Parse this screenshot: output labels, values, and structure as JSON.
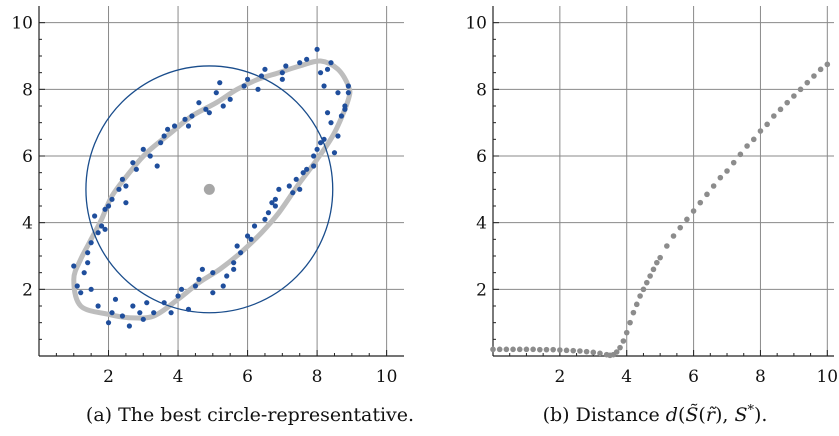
{
  "chart_data": [
    {
      "type": "scatter",
      "caption": "(a) The best circle-representative.",
      "xlim": [
        0,
        10.5
      ],
      "ylim": [
        0,
        10.5
      ],
      "xticks": [
        2,
        4,
        6,
        8,
        10
      ],
      "yticks": [
        2,
        4,
        6,
        8,
        10
      ],
      "grid": true,
      "colors": {
        "points": "#1f4e9c",
        "curve": "#bdbdbd",
        "circle": "#1a4d8c",
        "center": "#a6a6a6"
      },
      "curve_loop": [
        [
          2.0,
          1.25
        ],
        [
          2.6,
          1.15
        ],
        [
          3.3,
          1.2
        ],
        [
          4.0,
          1.7
        ],
        [
          4.6,
          2.2
        ],
        [
          5.2,
          2.6
        ],
        [
          5.8,
          3.1
        ],
        [
          6.4,
          3.7
        ],
        [
          6.9,
          4.3
        ],
        [
          7.5,
          5.2
        ],
        [
          8.0,
          5.9
        ],
        [
          8.5,
          6.7
        ],
        [
          8.9,
          7.7
        ],
        [
          8.9,
          8.1
        ],
        [
          8.6,
          8.6
        ],
        [
          8.1,
          8.85
        ],
        [
          7.5,
          8.7
        ],
        [
          6.9,
          8.5
        ],
        [
          6.3,
          8.3
        ],
        [
          5.7,
          8.0
        ],
        [
          5.1,
          7.6
        ],
        [
          4.4,
          7.2
        ],
        [
          3.8,
          6.7
        ],
        [
          3.1,
          6.1
        ],
        [
          2.6,
          5.5
        ],
        [
          2.1,
          4.8
        ],
        [
          1.8,
          4.1
        ],
        [
          1.5,
          3.5
        ],
        [
          1.2,
          2.9
        ],
        [
          1.0,
          2.3
        ],
        [
          1.2,
          1.5
        ]
      ],
      "circle": {
        "center": [
          4.9,
          5.0
        ],
        "radius": 3.55
      },
      "center_point": [
        4.9,
        5.0
      ],
      "points": [
        [
          2.7,
          1.5
        ],
        [
          1.0,
          2.7
        ],
        [
          4.3,
          1.4
        ],
        [
          8.4,
          7.0
        ],
        [
          5.3,
          2.1
        ],
        [
          7.2,
          5.1
        ],
        [
          2.5,
          4.6
        ],
        [
          5.5,
          7.7
        ],
        [
          3.3,
          1.3
        ],
        [
          1.8,
          3.9
        ],
        [
          1.7,
          1.5
        ],
        [
          8.2,
          8.1
        ],
        [
          6.0,
          8.3
        ],
        [
          5.0,
          2.5
        ],
        [
          6.8,
          4.5
        ],
        [
          8.1,
          6.4
        ],
        [
          7.0,
          8.3
        ],
        [
          3.9,
          6.9
        ],
        [
          1.4,
          3.1
        ],
        [
          8.8,
          7.5
        ],
        [
          3.0,
          6.2
        ],
        [
          4.6,
          2.3
        ],
        [
          2.4,
          1.2
        ],
        [
          2.1,
          4.7
        ],
        [
          5.1,
          7.9
        ],
        [
          7.5,
          8.8
        ],
        [
          8.6,
          7.9
        ],
        [
          1.1,
          2.1
        ],
        [
          7.7,
          5.6
        ],
        [
          3.6,
          1.6
        ],
        [
          4.9,
          7.3
        ],
        [
          2.8,
          5.6
        ],
        [
          1.5,
          3.4
        ],
        [
          6.5,
          4.1
        ],
        [
          8.3,
          8.6
        ],
        [
          5.8,
          3.1
        ],
        [
          2.0,
          1.0
        ],
        [
          7.9,
          6.0
        ],
        [
          3.5,
          6.4
        ],
        [
          4.2,
          7.1
        ],
        [
          6.3,
          8.0
        ],
        [
          8.0,
          9.2
        ],
        [
          1.6,
          4.2
        ],
        [
          4.1,
          2.0
        ],
        [
          8.5,
          6.1
        ],
        [
          2.3,
          5.0
        ],
        [
          7.1,
          8.7
        ],
        [
          6.0,
          3.6
        ],
        [
          4.4,
          7.2
        ],
        [
          7.4,
          5.3
        ],
        [
          1.3,
          2.5
        ],
        [
          5.6,
          2.8
        ],
        [
          2.6,
          0.9
        ],
        [
          8.9,
          8.1
        ],
        [
          3.2,
          6.0
        ],
        [
          6.6,
          4.3
        ],
        [
          5.3,
          7.5
        ],
        [
          8.7,
          7.2
        ],
        [
          1.9,
          4.4
        ],
        [
          2.9,
          1.3
        ],
        [
          4.0,
          1.8
        ],
        [
          7.7,
          8.9
        ],
        [
          6.2,
          3.9
        ],
        [
          3.7,
          6.8
        ],
        [
          8.2,
          6.5
        ],
        [
          1.2,
          1.9
        ],
        [
          5.9,
          8.1
        ],
        [
          4.7,
          2.6
        ],
        [
          2.4,
          5.3
        ],
        [
          6.9,
          5.0
        ],
        [
          8.4,
          8.8
        ],
        [
          3.1,
          1.6
        ],
        [
          7.3,
          4.9
        ],
        [
          4.6,
          7.6
        ],
        [
          1.7,
          3.7
        ],
        [
          5.4,
          2.4
        ],
        [
          8.8,
          7.4
        ],
        [
          2.2,
          1.7
        ],
        [
          6.4,
          8.4
        ],
        [
          3.4,
          5.7
        ],
        [
          7.9,
          5.7
        ],
        [
          6.7,
          4.6
        ],
        [
          1.4,
          2.8
        ],
        [
          5.0,
          1.9
        ],
        [
          2.0,
          4.5
        ],
        [
          8.6,
          6.6
        ],
        [
          4.3,
          6.9
        ],
        [
          3.8,
          1.3
        ],
        [
          7.0,
          8.5
        ],
        [
          5.7,
          3.3
        ],
        [
          8.1,
          8.5
        ],
        [
          2.7,
          5.8
        ],
        [
          6.1,
          3.5
        ],
        [
          1.5,
          2.0
        ],
        [
          4.8,
          7.4
        ],
        [
          7.6,
          5.5
        ],
        [
          3.0,
          1.1
        ],
        [
          8.3,
          7.3
        ],
        [
          5.2,
          8.2
        ],
        [
          6.8,
          4.7
        ],
        [
          2.1,
          1.3
        ],
        [
          4.5,
          2.1
        ],
        [
          3.6,
          6.6
        ],
        [
          8.9,
          7.9
        ],
        [
          1.9,
          3.8
        ],
        [
          6.5,
          8.6
        ],
        [
          5.6,
          2.6
        ],
        [
          7.5,
          5.0
        ],
        [
          2.5,
          5.1
        ],
        [
          8.0,
          6.2
        ]
      ]
    },
    {
      "type": "scatter",
      "caption": "(b) Distance d(S̃(r̃), S*).",
      "xlim": [
        0,
        10.2
      ],
      "ylim": [
        0,
        10.5
      ],
      "xticks": [
        2,
        4,
        6,
        8,
        10
      ],
      "yticks": [
        2,
        4,
        6,
        8,
        10
      ],
      "grid": true,
      "colors": {
        "points": "#8c8c8c"
      },
      "points": [
        [
          0.0,
          0.2
        ],
        [
          0.2,
          0.2
        ],
        [
          0.4,
          0.2
        ],
        [
          0.6,
          0.2
        ],
        [
          0.8,
          0.2
        ],
        [
          1.0,
          0.2
        ],
        [
          1.2,
          0.2
        ],
        [
          1.4,
          0.19
        ],
        [
          1.6,
          0.19
        ],
        [
          1.8,
          0.19
        ],
        [
          2.0,
          0.18
        ],
        [
          2.2,
          0.17
        ],
        [
          2.4,
          0.16
        ],
        [
          2.6,
          0.15
        ],
        [
          2.8,
          0.13
        ],
        [
          3.0,
          0.11
        ],
        [
          3.2,
          0.08
        ],
        [
          3.4,
          0.04
        ],
        [
          3.5,
          0.02
        ],
        [
          3.6,
          0.04
        ],
        [
          3.7,
          0.12
        ],
        [
          3.8,
          0.25
        ],
        [
          3.9,
          0.45
        ],
        [
          4.0,
          0.7
        ],
        [
          4.1,
          1.0
        ],
        [
          4.2,
          1.3
        ],
        [
          4.3,
          1.55
        ],
        [
          4.4,
          1.8
        ],
        [
          4.5,
          2.0
        ],
        [
          4.6,
          2.2
        ],
        [
          4.7,
          2.4
        ],
        [
          4.8,
          2.6
        ],
        [
          4.9,
          2.8
        ],
        [
          5.0,
          2.95
        ],
        [
          5.2,
          3.3
        ],
        [
          5.4,
          3.6
        ],
        [
          5.6,
          3.85
        ],
        [
          5.8,
          4.1
        ],
        [
          6.0,
          4.35
        ],
        [
          6.2,
          4.6
        ],
        [
          6.4,
          4.85
        ],
        [
          6.6,
          5.1
        ],
        [
          6.8,
          5.35
        ],
        [
          7.0,
          5.55
        ],
        [
          7.2,
          5.8
        ],
        [
          7.4,
          6.05
        ],
        [
          7.6,
          6.3
        ],
        [
          7.8,
          6.5
        ],
        [
          8.0,
          6.75
        ],
        [
          8.2,
          6.95
        ],
        [
          8.4,
          7.2
        ],
        [
          8.6,
          7.4
        ],
        [
          8.8,
          7.6
        ],
        [
          9.0,
          7.8
        ],
        [
          9.2,
          8.0
        ],
        [
          9.4,
          8.2
        ],
        [
          9.6,
          8.4
        ],
        [
          9.8,
          8.6
        ],
        [
          10.0,
          8.75
        ]
      ]
    }
  ]
}
